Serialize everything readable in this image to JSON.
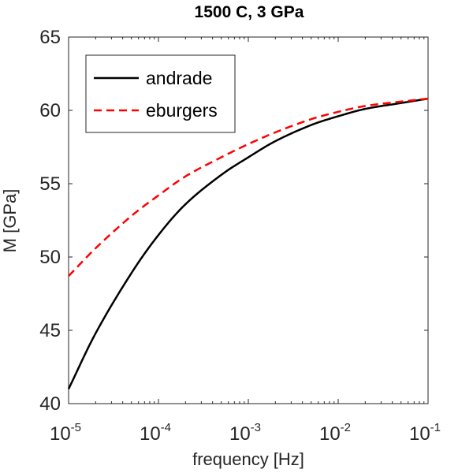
{
  "chart_data": {
    "type": "line",
    "title": "1500 C, 3 GPa",
    "xlabel": "frequency [Hz]",
    "ylabel": "M [GPa]",
    "x_scale": "log",
    "xlim": [
      1e-05,
      0.1
    ],
    "ylim": [
      40,
      65
    ],
    "x_ticks": [
      {
        "base": "10",
        "exp": "-5"
      },
      {
        "base": "10",
        "exp": "-4"
      },
      {
        "base": "10",
        "exp": "-3"
      },
      {
        "base": "10",
        "exp": "-2"
      },
      {
        "base": "10",
        "exp": "-1"
      }
    ],
    "y_ticks": [
      "40",
      "45",
      "50",
      "55",
      "60",
      "65"
    ],
    "grid": false,
    "legend_position": "top-left",
    "x": [
      1e-05,
      2e-05,
      5e-05,
      0.0001,
      0.0002,
      0.0005,
      0.001,
      0.002,
      0.005,
      0.01,
      0.02,
      0.05,
      0.1
    ],
    "series": [
      {
        "name": "andrade",
        "color": "#000000",
        "style": "solid",
        "values": [
          41.0,
          44.8,
          48.9,
          51.5,
          53.6,
          55.6,
          56.8,
          57.9,
          59.0,
          59.6,
          60.1,
          60.5,
          60.8
        ]
      },
      {
        "name": "eburgers",
        "color": "#ff0000",
        "style": "dashed",
        "values": [
          48.7,
          50.6,
          52.8,
          54.2,
          55.5,
          56.8,
          57.7,
          58.5,
          59.4,
          59.9,
          60.3,
          60.6,
          60.8
        ]
      }
    ]
  }
}
